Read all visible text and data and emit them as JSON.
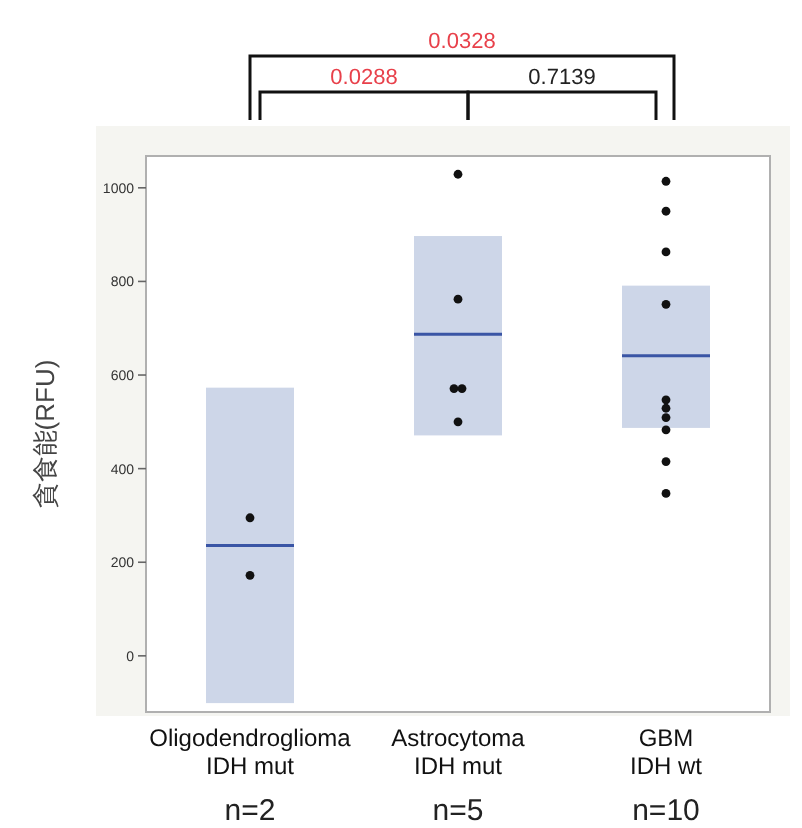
{
  "chart_data": {
    "type": "box",
    "ylabel": "貪食能(RFU)",
    "categories": [
      "Oligodendroglioma\nIDH mut",
      "Astrocytoma\nIDH mut",
      "GBM\nIDH wt"
    ],
    "boxes": [
      {
        "low": -101,
        "q1": -101,
        "median": 236,
        "q3": 573,
        "high": 573
      },
      {
        "low": 471,
        "q1": 471,
        "median": 687,
        "q3": 897,
        "high": 897
      },
      {
        "low": 487,
        "q1": 487,
        "median": 641,
        "q3": 791,
        "high": 791
      }
    ],
    "color": "#cdd6e8",
    "series": [
      {
        "type": "scatter",
        "color": "#111111",
        "x": [
          "Oligodendroglioma\nIDH mut",
          "Oligodendroglioma\nIDH mut",
          "Astrocytoma\nIDH mut",
          "Astrocytoma\nIDH mut",
          "Astrocytoma\nIDH mut",
          "Astrocytoma\nIDH mut",
          "Astrocytoma\nIDH mut",
          "GBM\nIDH wt",
          "GBM\nIDH wt",
          "GBM\nIDH wt",
          "GBM\nIDH wt",
          "GBM\nIDH wt",
          "GBM\nIDH wt",
          "GBM\nIDH wt",
          "GBM\nIDH wt",
          "GBM\nIDH wt",
          "GBM\nIDH wt"
        ],
        "values": [
          295,
          172,
          1029,
          762,
          571,
          571,
          500,
          1014,
          950,
          863,
          751,
          547,
          529,
          509,
          483,
          415,
          347
        ]
      }
    ],
    "marker": "circle",
    "ylim": [
      -120,
      1068
    ],
    "yticks": [
      0,
      200,
      400,
      600,
      800,
      1000
    ],
    "grid": false,
    "annotations": [
      "n=2",
      "n=5",
      "n=10",
      "0.0288",
      "0.7139",
      "0.0328"
    ]
  }
}
